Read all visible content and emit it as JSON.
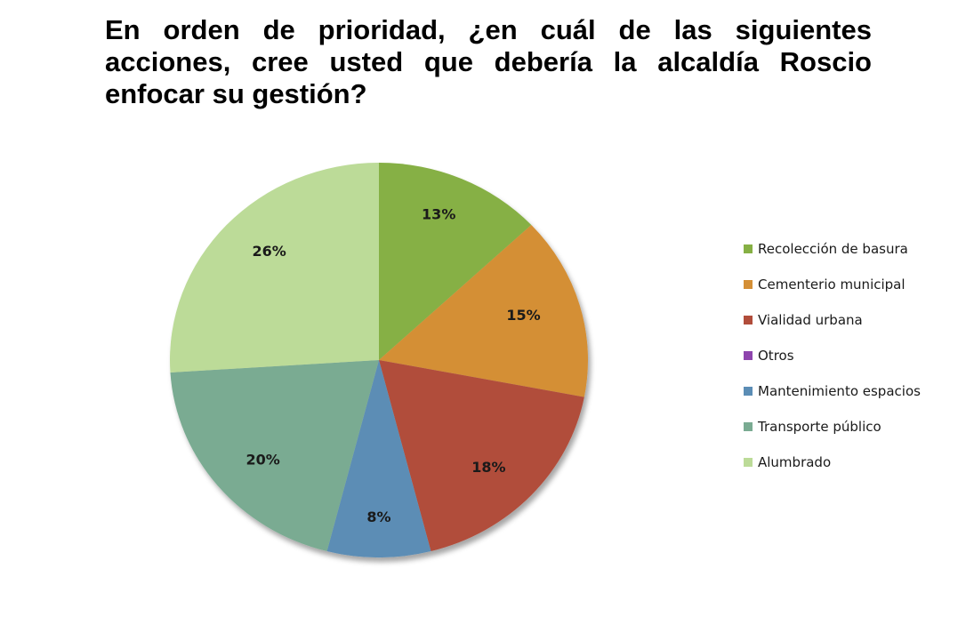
{
  "chart_data": {
    "type": "pie",
    "title": "En orden de prioridad, ¿en cuál de las siguientes acciones, cree usted que debería la alcaldía Roscio enfocar su gestión?",
    "categories": [
      "Recolección de basura",
      "Cementerio municipal",
      "Vialidad urbana",
      "Otros",
      "Mantenimiento espacios",
      "Transporte público",
      "Alumbrado"
    ],
    "values": [
      13,
      15,
      18,
      0,
      8,
      20,
      26
    ],
    "data_labels": [
      "13%",
      "15%",
      "18%",
      "",
      "8%",
      "20%",
      "26%"
    ],
    "colors": [
      "#86b044",
      "#d48f36",
      "#b14d3b",
      "#8e44ad",
      "#5b8db5",
      "#7aab92",
      "#bcdb98"
    ],
    "legend_position": "right"
  }
}
